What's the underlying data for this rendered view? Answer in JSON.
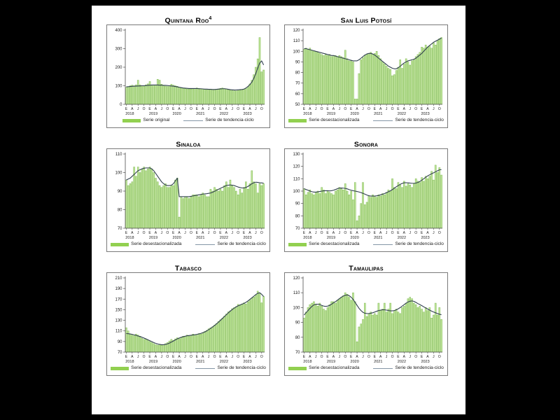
{
  "page": {
    "background_color": "#000000",
    "paper_color": "#ffffff"
  },
  "colors": {
    "bar_fill": "#bfe49a",
    "bar_stroke": "#77b548",
    "trend_line": "#31404f",
    "legend_swatch": "#92d050",
    "legend_line": "#8496a6",
    "axis": "#4d4d4d",
    "tick_text": "#1a1a1a",
    "frame_border": "#7a7a7a"
  },
  "x_axis": {
    "month_tick_labels": [
      "E",
      "A",
      "J",
      "O"
    ],
    "years": [
      "2018",
      "2019",
      "2020",
      "2021",
      "2022",
      "2023"
    ]
  },
  "chart_data": [
    {
      "type": "bar",
      "title": "Quintana Roo",
      "title_superscript": "4",
      "ylim": [
        0,
        400
      ],
      "ytick_step": 100,
      "grid": false,
      "legend": [
        {
          "series": "bars",
          "label": "Serie original"
        },
        {
          "series": "line",
          "label": "Serie de tendencia-ciclo"
        }
      ],
      "series": [
        {
          "name": "Serie original",
          "type": "bar",
          "values": [
            92,
            95,
            100,
            103,
            100,
            105,
            130,
            105,
            100,
            98,
            105,
            110,
            123,
            100,
            103,
            105,
            135,
            130,
            108,
            100,
            98,
            96,
            100,
            108,
            103,
            100,
            97,
            92,
            88,
            85,
            84,
            83,
            82,
            82,
            83,
            85,
            88,
            86,
            84,
            82,
            80,
            78,
            80,
            82,
            80,
            78,
            80,
            83,
            86,
            88,
            85,
            82,
            79,
            76,
            74,
            73,
            72,
            74,
            76,
            78,
            80,
            85,
            95,
            110,
            130,
            160,
            200,
            245,
            360,
            175,
            185
          ]
        },
        {
          "name": "Serie de tendencia-ciclo",
          "type": "line",
          "values": [
            94,
            95,
            96,
            97,
            98,
            98,
            99,
            99,
            100,
            100,
            101,
            102,
            103,
            104,
            104,
            104,
            104,
            103,
            103,
            102,
            102,
            101,
            100,
            99,
            98,
            96,
            94,
            92,
            90,
            88,
            87,
            86,
            85,
            85,
            85,
            85,
            85,
            84,
            84,
            83,
            82,
            82,
            81,
            81,
            80,
            80,
            81,
            82,
            83,
            84,
            84,
            83,
            81,
            79,
            78,
            77,
            77,
            78,
            79,
            80,
            82,
            88,
            96,
            106,
            120,
            140,
            165,
            195,
            222,
            234,
            212
          ]
        }
      ]
    },
    {
      "type": "bar",
      "title": "San Luis Potosí",
      "title_superscript": "",
      "ylim": [
        50,
        120
      ],
      "ytick_step": 10,
      "grid": false,
      "legend": [
        {
          "series": "bars",
          "label": "Serie desestacionalizada"
        },
        {
          "series": "line",
          "label": "Serie de tendencia-ciclo"
        }
      ],
      "series": [
        {
          "name": "Serie desestacionalizada",
          "type": "bar",
          "values": [
            102,
            103,
            102,
            103,
            101,
            100,
            100,
            99,
            98,
            97,
            96,
            97,
            96,
            97,
            95,
            96,
            96,
            95,
            96,
            95,
            94,
            101,
            93,
            91,
            91,
            90,
            55,
            55,
            79,
            92,
            94,
            96,
            97,
            98,
            99,
            97,
            98,
            100,
            96,
            93,
            90,
            88,
            86,
            84,
            83,
            77,
            78,
            82,
            85,
            92,
            84,
            88,
            93,
            90,
            87,
            91,
            92,
            95,
            97,
            99,
            104,
            103,
            106,
            104,
            105,
            103,
            108,
            106,
            110,
            112,
            113
          ]
        },
        {
          "name": "Serie de tendencia-ciclo",
          "type": "line",
          "values": [
            102.5,
            102.5,
            102,
            101.5,
            101,
            100.5,
            100,
            99.5,
            99,
            98.5,
            98,
            97.5,
            97,
            96.5,
            96,
            96,
            95.5,
            95,
            94.5,
            94,
            93.5,
            93,
            92.5,
            92,
            91.5,
            91,
            91,
            91,
            92,
            93.5,
            95,
            96.5,
            97.5,
            98,
            98,
            97.5,
            96.5,
            95,
            93.5,
            92,
            90.5,
            89,
            87.5,
            86,
            85,
            84,
            83.5,
            83.5,
            84.5,
            86,
            87.5,
            89,
            90,
            91,
            91.5,
            92,
            92.5,
            93.5,
            95,
            96.5,
            98,
            100,
            102,
            104,
            105.5,
            107,
            108.5,
            109.5,
            110.5,
            111.5,
            112.5
          ]
        }
      ]
    },
    {
      "type": "bar",
      "title": "Sinaloa",
      "title_superscript": "",
      "ylim": [
        70,
        110
      ],
      "ytick_step": 10,
      "grid": false,
      "legend": [
        {
          "series": "bars",
          "label": "Serie desestacionalizada"
        },
        {
          "series": "line",
          "label": "Serie de tendencia-ciclo"
        }
      ],
      "series": [
        {
          "name": "Serie desestacionalizada",
          "type": "bar",
          "values": [
            96,
            93,
            94,
            95,
            103,
            98,
            103,
            100,
            102,
            103,
            101,
            102,
            103,
            102,
            100,
            97,
            95,
            93,
            92,
            93,
            94,
            92,
            92,
            93,
            93,
            96,
            97,
            76,
            87,
            86,
            87,
            87,
            86,
            87,
            88,
            88,
            88,
            87,
            88,
            89,
            88,
            87,
            87,
            91,
            90,
            92,
            91,
            90,
            91,
            90,
            93,
            95,
            92,
            96,
            93,
            92,
            90,
            88,
            91,
            89,
            92,
            95,
            91,
            94,
            101,
            95,
            94,
            89,
            94,
            93,
            94
          ]
        },
        {
          "name": "Serie de tendencia-ciclo",
          "type": "line",
          "values": [
            96,
            96.5,
            97,
            98,
            99,
            100,
            101,
            101.5,
            102,
            102.3,
            102.5,
            102.5,
            102.5,
            102,
            101,
            99.5,
            98,
            96.5,
            95,
            94,
            93.3,
            93,
            93,
            93.2,
            94,
            95.5,
            97,
            87,
            87,
            87,
            87,
            87,
            87,
            87.2,
            87.4,
            87.6,
            87.8,
            88,
            88.2,
            88.4,
            88.5,
            88.6,
            88.8,
            89,
            89.4,
            89.9,
            90.4,
            91,
            91.5,
            92,
            92.5,
            93,
            93.2,
            93.3,
            93.2,
            93,
            92.6,
            92.2,
            91.9,
            91.7,
            91.7,
            92,
            92.5,
            93.2,
            94,
            94.5,
            94.8,
            94.7,
            94.5,
            94.4,
            94.3
          ]
        }
      ]
    },
    {
      "type": "bar",
      "title": "Sonora",
      "title_superscript": "",
      "ylim": [
        70,
        130
      ],
      "ytick_step": 10,
      "grid": false,
      "legend": [
        {
          "series": "bars",
          "label": "Serie desestacionalizada"
        },
        {
          "series": "line",
          "label": "Serie de tendencia-ciclo"
        }
      ],
      "series": [
        {
          "name": "Serie desestacionalizada",
          "type": "bar",
          "values": [
            102,
            97,
            99,
            101,
            98,
            97,
            99,
            100,
            98,
            103,
            101,
            98,
            100,
            99,
            98,
            97,
            100,
            101,
            103,
            102,
            101,
            106,
            100,
            97,
            100,
            93,
            107,
            76,
            80,
            90,
            107,
            89,
            91,
            96,
            95,
            97,
            96,
            95,
            97,
            96,
            98,
            97,
            99,
            101,
            100,
            110,
            103,
            102,
            107,
            105,
            103,
            108,
            104,
            106,
            105,
            103,
            106,
            110,
            108,
            107,
            111,
            108,
            112,
            110,
            112,
            116,
            109,
            121,
            115,
            119,
            113
          ]
        },
        {
          "name": "Serie de tendencia-ciclo",
          "type": "line",
          "values": [
            102,
            101.3,
            100.7,
            100,
            99.5,
            99.2,
            99.2,
            99.4,
            99.7,
            100,
            100.2,
            100.3,
            100.3,
            100.2,
            100.3,
            100.7,
            101.3,
            102,
            102.4,
            102.5,
            102.4,
            102.2,
            101.8,
            101.2,
            100.7,
            100.3,
            100,
            99.7,
            99.3,
            98.8,
            98.2,
            97.5,
            96.8,
            96.3,
            96,
            96,
            96,
            96.2,
            96.5,
            97,
            97.5,
            98,
            98.7,
            99.5,
            100.3,
            101.2,
            102.3,
            103.5,
            104.5,
            105.5,
            106.2,
            106.7,
            106.8,
            106.7,
            106.5,
            106.3,
            106.3,
            106.5,
            107,
            107.8,
            108.8,
            110,
            111.2,
            112.3,
            113.2,
            114,
            114.8,
            115.6,
            116.4,
            117.2,
            117.4
          ]
        }
      ]
    },
    {
      "type": "bar",
      "title": "Tabasco",
      "title_superscript": "",
      "ylim": [
        70,
        210
      ],
      "ytick_step": 20,
      "grid": false,
      "legend": [
        {
          "series": "bars",
          "label": "Serie desestacionalizada"
        },
        {
          "series": "line",
          "label": "Serie de tendencia-ciclo"
        }
      ],
      "series": [
        {
          "name": "Serie desestacionalizada",
          "type": "bar",
          "values": [
            116,
            110,
            104,
            102,
            101,
            104,
            102,
            100,
            96,
            94,
            95,
            93,
            90,
            88,
            86,
            84,
            83,
            85,
            83,
            84,
            86,
            88,
            91,
            94,
            92,
            95,
            97,
            95,
            98,
            100,
            99,
            102,
            100,
            102,
            104,
            103,
            102,
            105,
            104,
            107,
            109,
            111,
            114,
            116,
            118,
            121,
            124,
            128,
            131,
            134,
            138,
            142,
            146,
            148,
            152,
            154,
            156,
            160,
            158,
            161,
            163,
            161,
            165,
            168,
            172,
            174,
            178,
            185,
            181,
            163,
            175
          ]
        },
        {
          "name": "Serie de tendencia-ciclo",
          "type": "line",
          "values": [
            105,
            104.8,
            104.3,
            103.5,
            102.5,
            101.5,
            100.5,
            99.3,
            98,
            96.5,
            95,
            93.3,
            91.5,
            89.8,
            88,
            86.5,
            85.3,
            84.5,
            84,
            84,
            84.5,
            85.5,
            87,
            89,
            91,
            93,
            95,
            96.5,
            98,
            99,
            100,
            100.8,
            101.3,
            101.8,
            102.3,
            102.8,
            103.5,
            104.3,
            105.3,
            106.5,
            108,
            110,
            112.3,
            114.8,
            117.5,
            120.3,
            123.3,
            126.5,
            130,
            133.5,
            137,
            140.5,
            144,
            147.3,
            150.3,
            153,
            155.3,
            157.3,
            159,
            160.5,
            162,
            164,
            166.5,
            169.5,
            172.5,
            175.5,
            178.5,
            181,
            182,
            179,
            175
          ]
        }
      ]
    },
    {
      "type": "bar",
      "title": "Tamaulipas",
      "title_superscript": "",
      "ylim": [
        70,
        120
      ],
      "ytick_step": 10,
      "grid": false,
      "legend": [
        {
          "series": "bars",
          "label": "Serie desestacionalizada"
        },
        {
          "series": "line",
          "label": "Serie de tendencia-ciclo"
        }
      ],
      "series": [
        {
          "name": "Serie desestacionalizada",
          "type": "bar",
          "values": [
            93,
            97,
            100,
            102,
            103,
            104,
            102,
            101,
            103,
            101,
            99,
            98,
            100,
            102,
            104,
            104,
            103,
            105,
            106,
            107,
            108,
            110,
            109,
            107,
            105,
            110,
            104,
            77,
            87,
            89,
            92,
            103,
            94,
            96,
            97,
            95,
            96,
            95,
            103,
            98,
            99,
            103,
            97,
            99,
            103,
            96,
            98,
            99,
            97,
            96,
            100,
            101,
            103,
            106,
            107,
            106,
            103,
            102,
            100,
            101,
            99,
            97,
            100,
            98,
            100,
            93,
            95,
            103,
            95,
            100,
            92
          ]
        },
        {
          "name": "Serie de tendencia-ciclo",
          "type": "line",
          "values": [
            95,
            96.5,
            98,
            99.5,
            100.8,
            101.8,
            102.3,
            102.3,
            102,
            101.5,
            101,
            100.8,
            101,
            101.5,
            102.3,
            103.2,
            104,
            105,
            106,
            107,
            107.8,
            108.3,
            108.5,
            108,
            107,
            105.5,
            103.5,
            101.5,
            99.5,
            98,
            96.8,
            96.2,
            96,
            96,
            96.2,
            96.5,
            97,
            97.5,
            98,
            98.3,
            98.5,
            98.5,
            98.3,
            98,
            97.8,
            97.8,
            98,
            98.5,
            99.2,
            100,
            101,
            102,
            103,
            103.8,
            104.3,
            104.5,
            104.2,
            103.5,
            102.7,
            102,
            101.3,
            100.5,
            99.8,
            99,
            98.3,
            97.6,
            97,
            96.5,
            96,
            95.5,
            95.2
          ]
        }
      ]
    }
  ]
}
